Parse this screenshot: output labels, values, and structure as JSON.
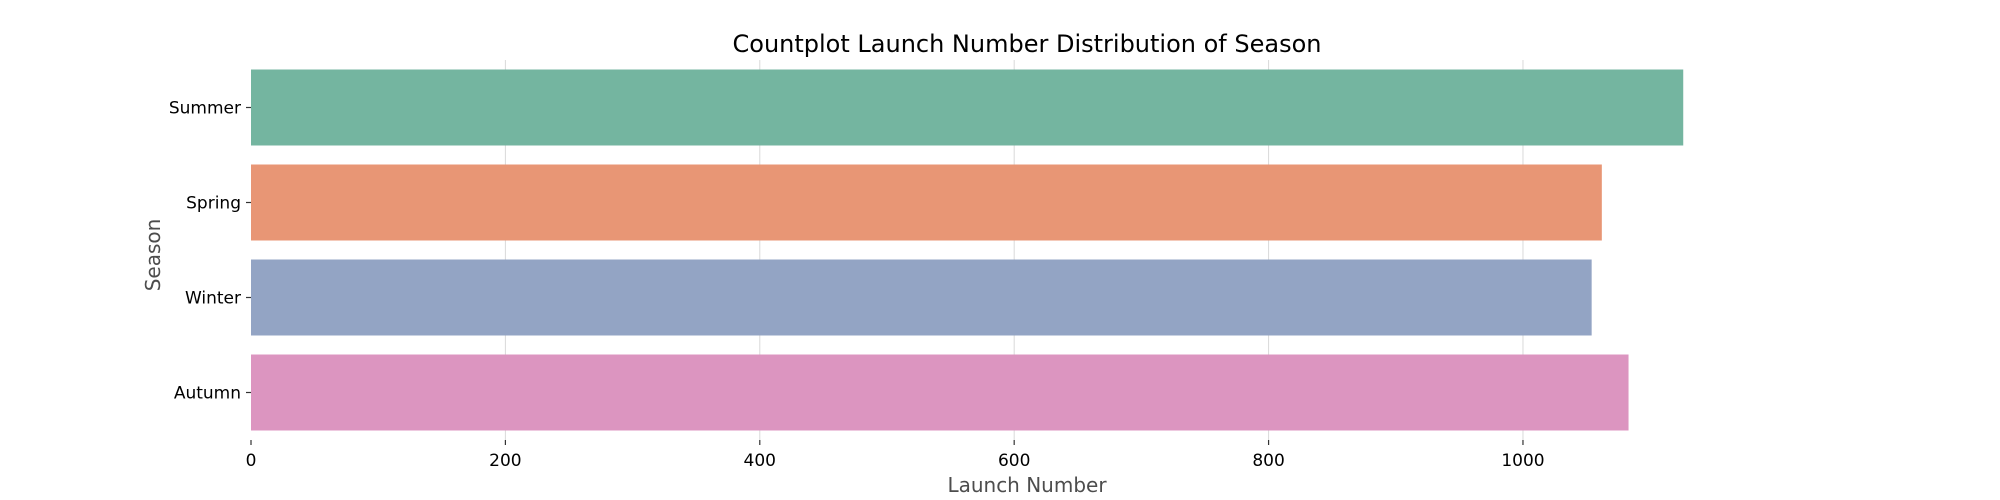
{
  "chart_data": {
    "type": "bar",
    "orientation": "horizontal",
    "title": "Countplot Launch Number Distribution of Season",
    "xlabel": "Launch Number",
    "ylabel": "Season",
    "categories": [
      "Summer",
      "Spring",
      "Winter",
      "Autumn"
    ],
    "values": [
      1126,
      1062,
      1054,
      1083
    ],
    "colors": [
      "#74b5a0",
      "#e89675",
      "#93a4c4",
      "#dc95c0"
    ],
    "xlim": [
      0,
      1320
    ],
    "xticks": [
      0,
      200,
      400,
      600,
      800,
      1000
    ],
    "grid": "vertical",
    "legend": "none"
  }
}
